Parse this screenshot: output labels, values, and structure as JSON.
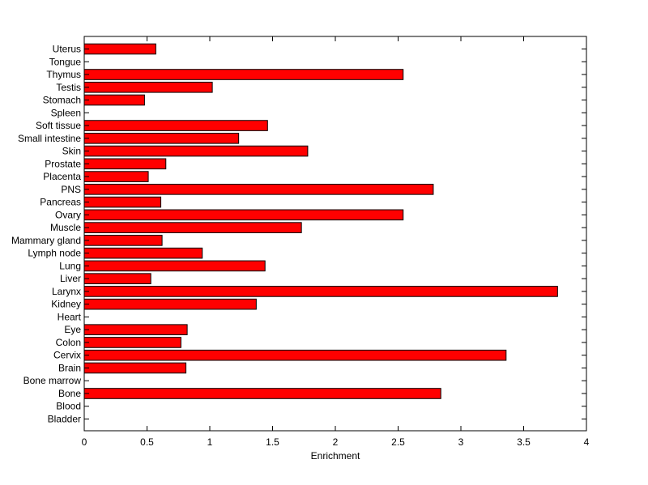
{
  "chart_data": {
    "type": "bar",
    "orientation": "horizontal",
    "categories": [
      "Bladder",
      "Blood",
      "Bone",
      "Bone marrow",
      "Brain",
      "Cervix",
      "Colon",
      "Eye",
      "Heart",
      "Kidney",
      "Larynx",
      "Liver",
      "Lung",
      "Lymph node",
      "Mammary gland",
      "Muscle",
      "Ovary",
      "Pancreas",
      "PNS",
      "Placenta",
      "Prostate",
      "Skin",
      "Small intestine",
      "Soft tissue",
      "Spleen",
      "Stomach",
      "Testis",
      "Thymus",
      "Tongue",
      "Uterus"
    ],
    "values": [
      0,
      0,
      2.84,
      0,
      0.81,
      3.36,
      0.77,
      0.82,
      0,
      1.37,
      3.77,
      0.53,
      1.44,
      0.94,
      0.62,
      1.73,
      2.54,
      0.61,
      2.78,
      0.51,
      0.65,
      1.78,
      1.23,
      1.46,
      0,
      0.48,
      1.02,
      2.54,
      0,
      0.57
    ],
    "xlabel": "Enrichment",
    "ylabel": "",
    "title": "",
    "xlim": [
      0,
      4
    ],
    "xticks": [
      "0",
      "0.5",
      "1",
      "1.5",
      "2",
      "2.5",
      "3",
      "3.5",
      "4"
    ],
    "grid": false,
    "bar_color": "#ff0000",
    "bar_edge_color": "#000000"
  }
}
